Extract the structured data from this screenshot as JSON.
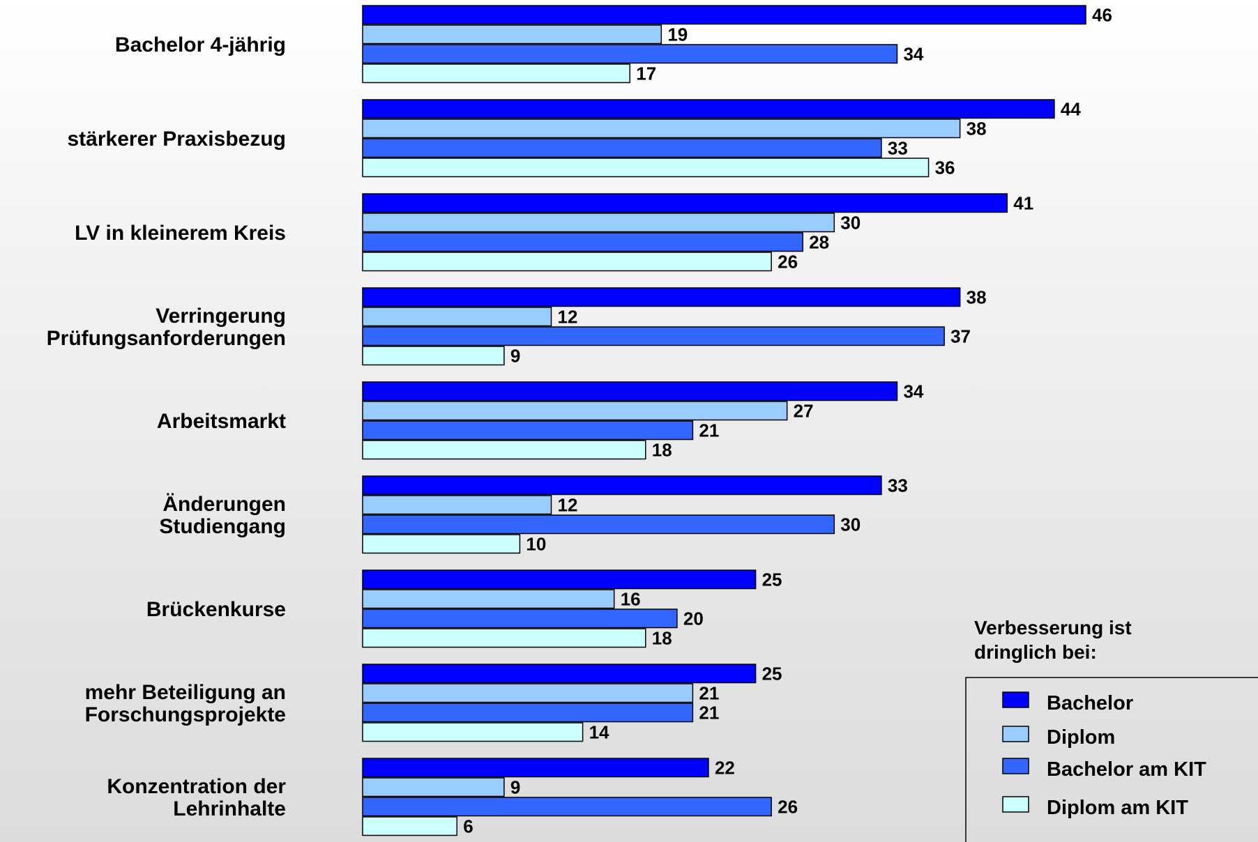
{
  "chart_data": {
    "type": "bar",
    "orientation": "horizontal",
    "categories": [
      [
        "Bachelor 4-jährig"
      ],
      [
        "stärkerer Praxisbezug"
      ],
      [
        "LV in kleinerem Kreis"
      ],
      [
        "Verringerung",
        "Prüfungsanforderungen"
      ],
      [
        "Arbeitsmarkt"
      ],
      [
        "Änderungen",
        "Studiengang"
      ],
      [
        "Brückenkurse"
      ],
      [
        "mehr Beteiligung an",
        "Forschungsprojekte"
      ],
      [
        "Konzentration der",
        "Lehrinhalte"
      ]
    ],
    "series": [
      {
        "name": "Bachelor",
        "color": "#0000ff",
        "values": [
          46,
          44,
          41,
          38,
          34,
          33,
          25,
          25,
          22
        ]
      },
      {
        "name": "Diplom",
        "color": "#99ccff",
        "values": [
          19,
          38,
          30,
          12,
          27,
          12,
          16,
          21,
          9
        ]
      },
      {
        "name": "Bachelor am KIT",
        "color": "#3366ff",
        "values": [
          34,
          33,
          28,
          37,
          21,
          30,
          20,
          21,
          26
        ]
      },
      {
        "name": "Diplom am KIT",
        "color": "#ccffff",
        "values": [
          17,
          36,
          26,
          9,
          18,
          10,
          18,
          14,
          6
        ]
      }
    ],
    "xlim": [
      0,
      46
    ],
    "grid": false,
    "show_axes": false,
    "legend": {
      "title": [
        "Verbesserung ist",
        "dringlich bei:"
      ],
      "position": "bottom-right"
    }
  }
}
